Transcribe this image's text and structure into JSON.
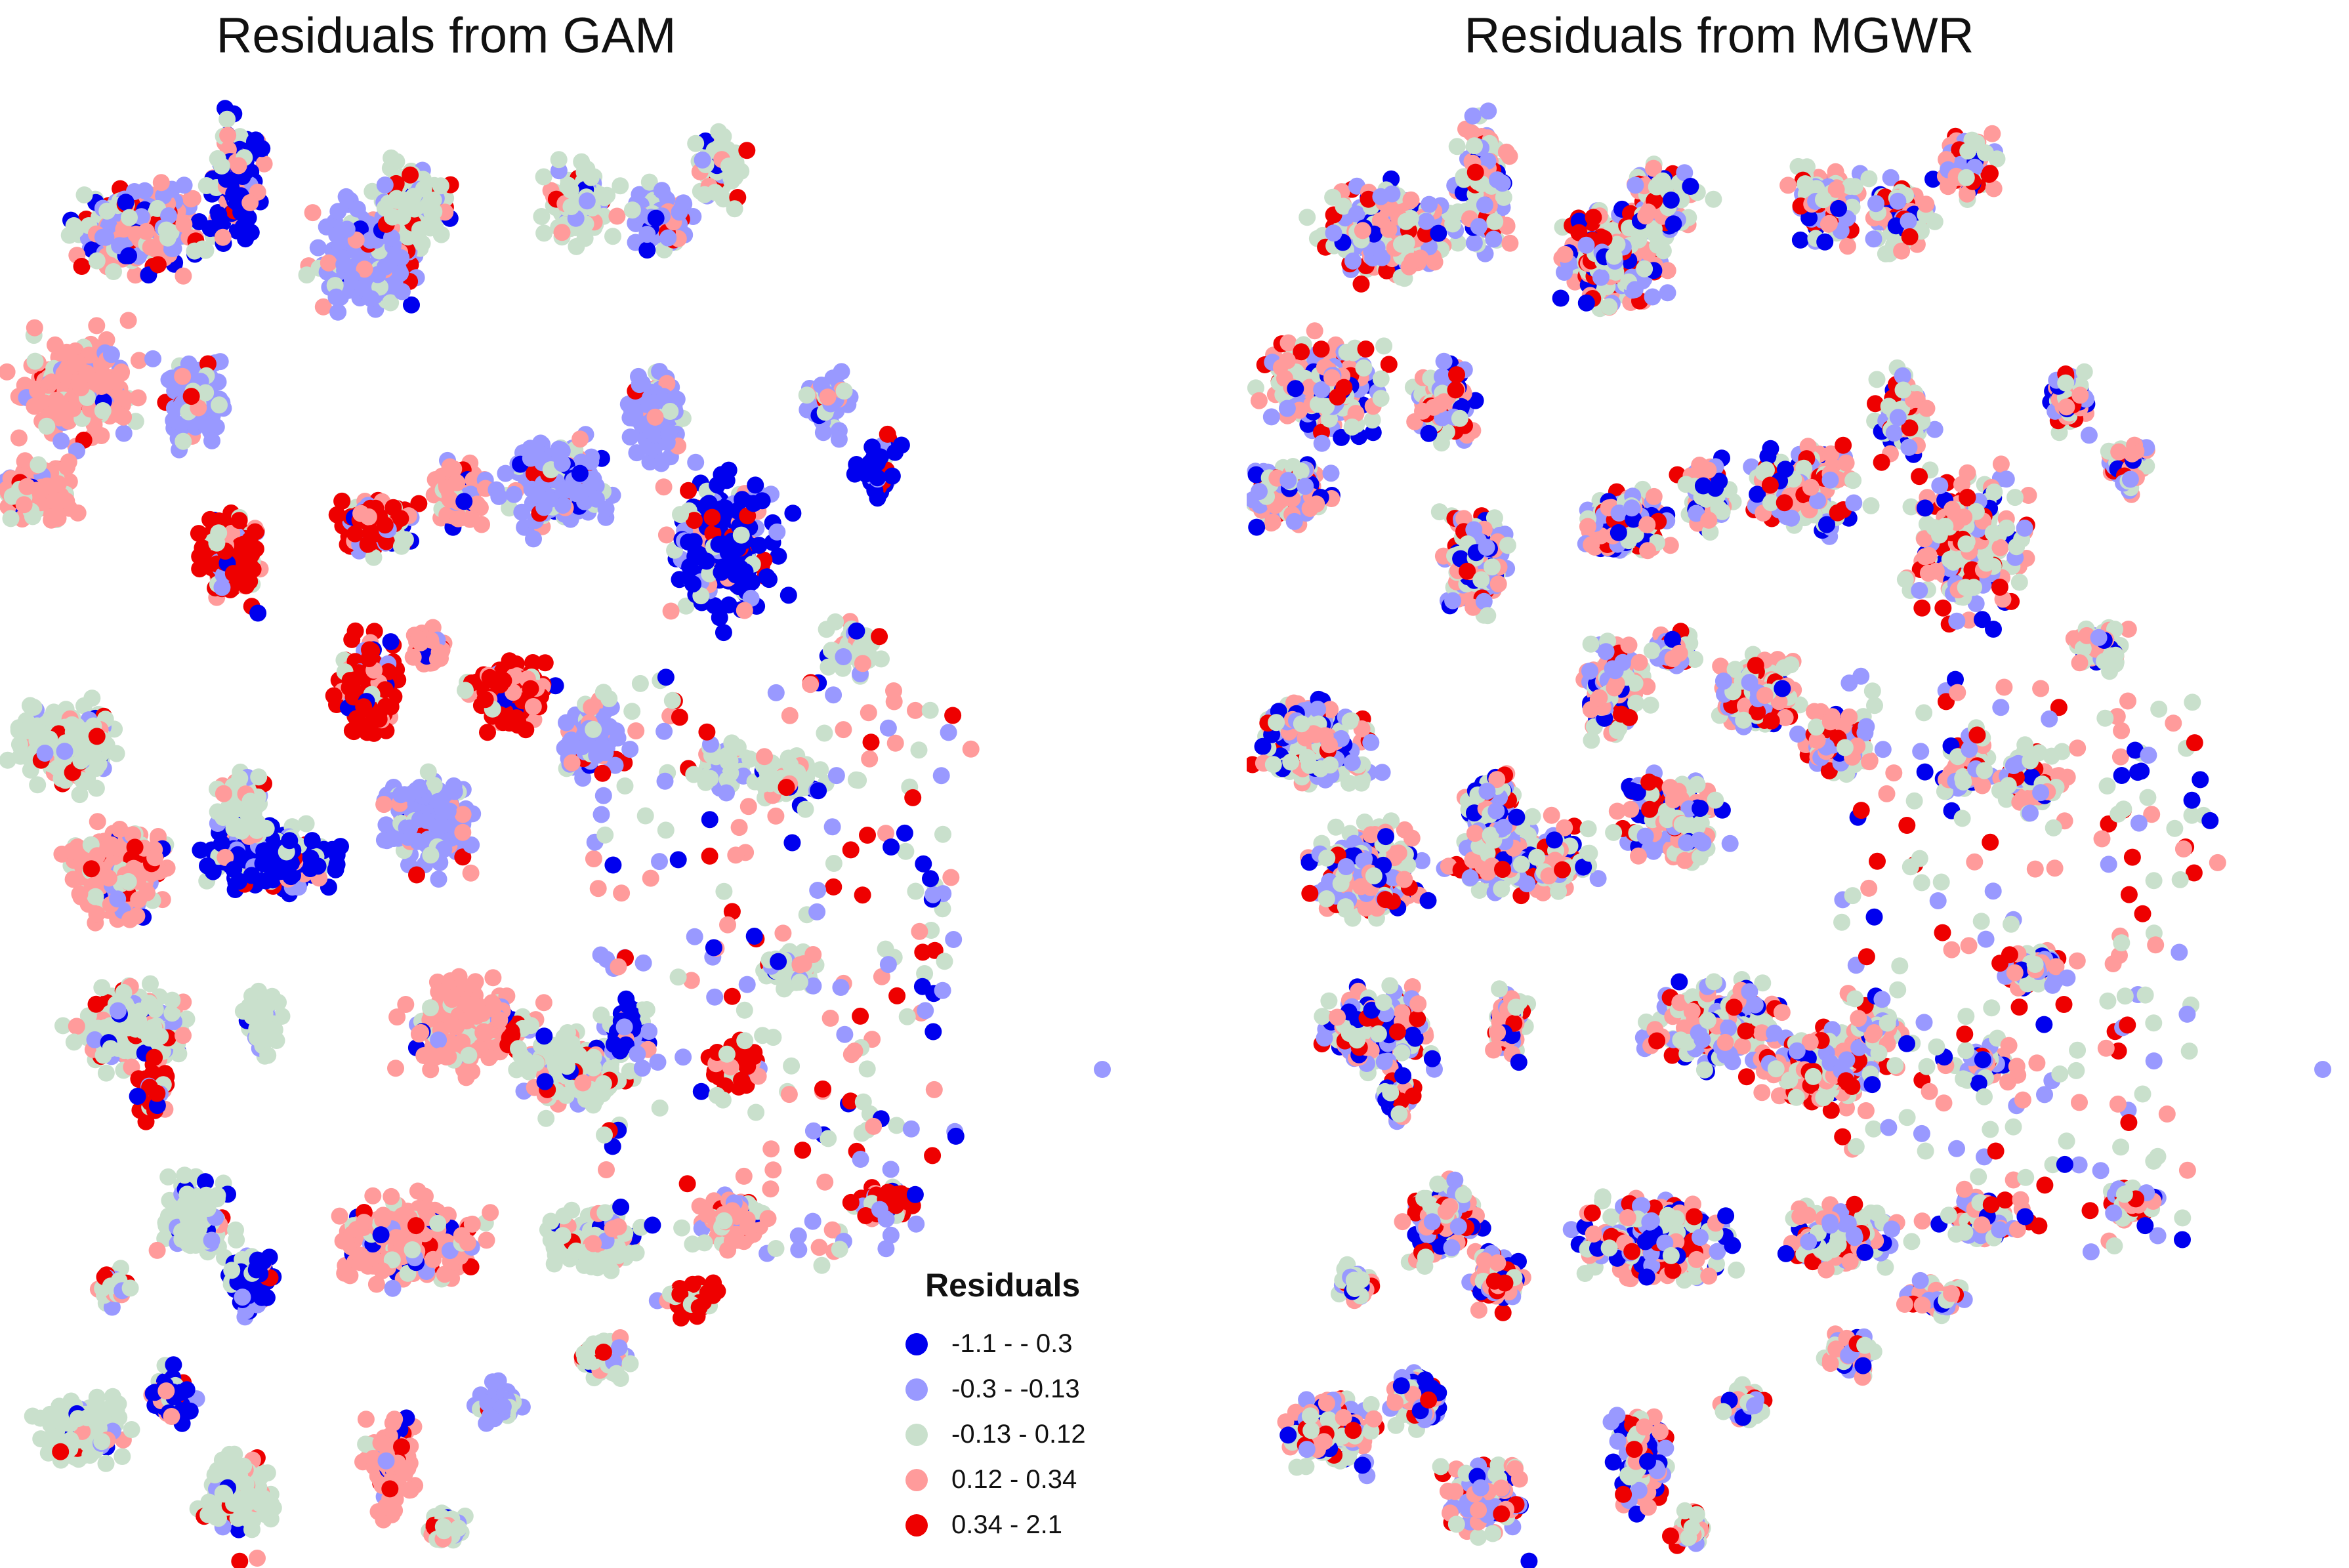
{
  "maps": [
    {
      "title": "Residuals from GAM",
      "pattern": "clustered"
    },
    {
      "title": "Residuals from MGWR",
      "pattern": "mixed"
    }
  ],
  "legend": {
    "title": "Residuals",
    "classes": [
      {
        "label": "-1.1 -  - 0.3",
        "color": "#0000ee"
      },
      {
        "label": "-0.3 - -0.13",
        "color": "#9999ff"
      },
      {
        "label": "-0.13 - 0.12",
        "color": "#c9e0cc"
      },
      {
        "label": "0.12 - 0.34",
        "color": "#ff9b9b"
      },
      {
        "label": "0.34 - 2.1",
        "color": "#ee0000"
      }
    ]
  }
}
